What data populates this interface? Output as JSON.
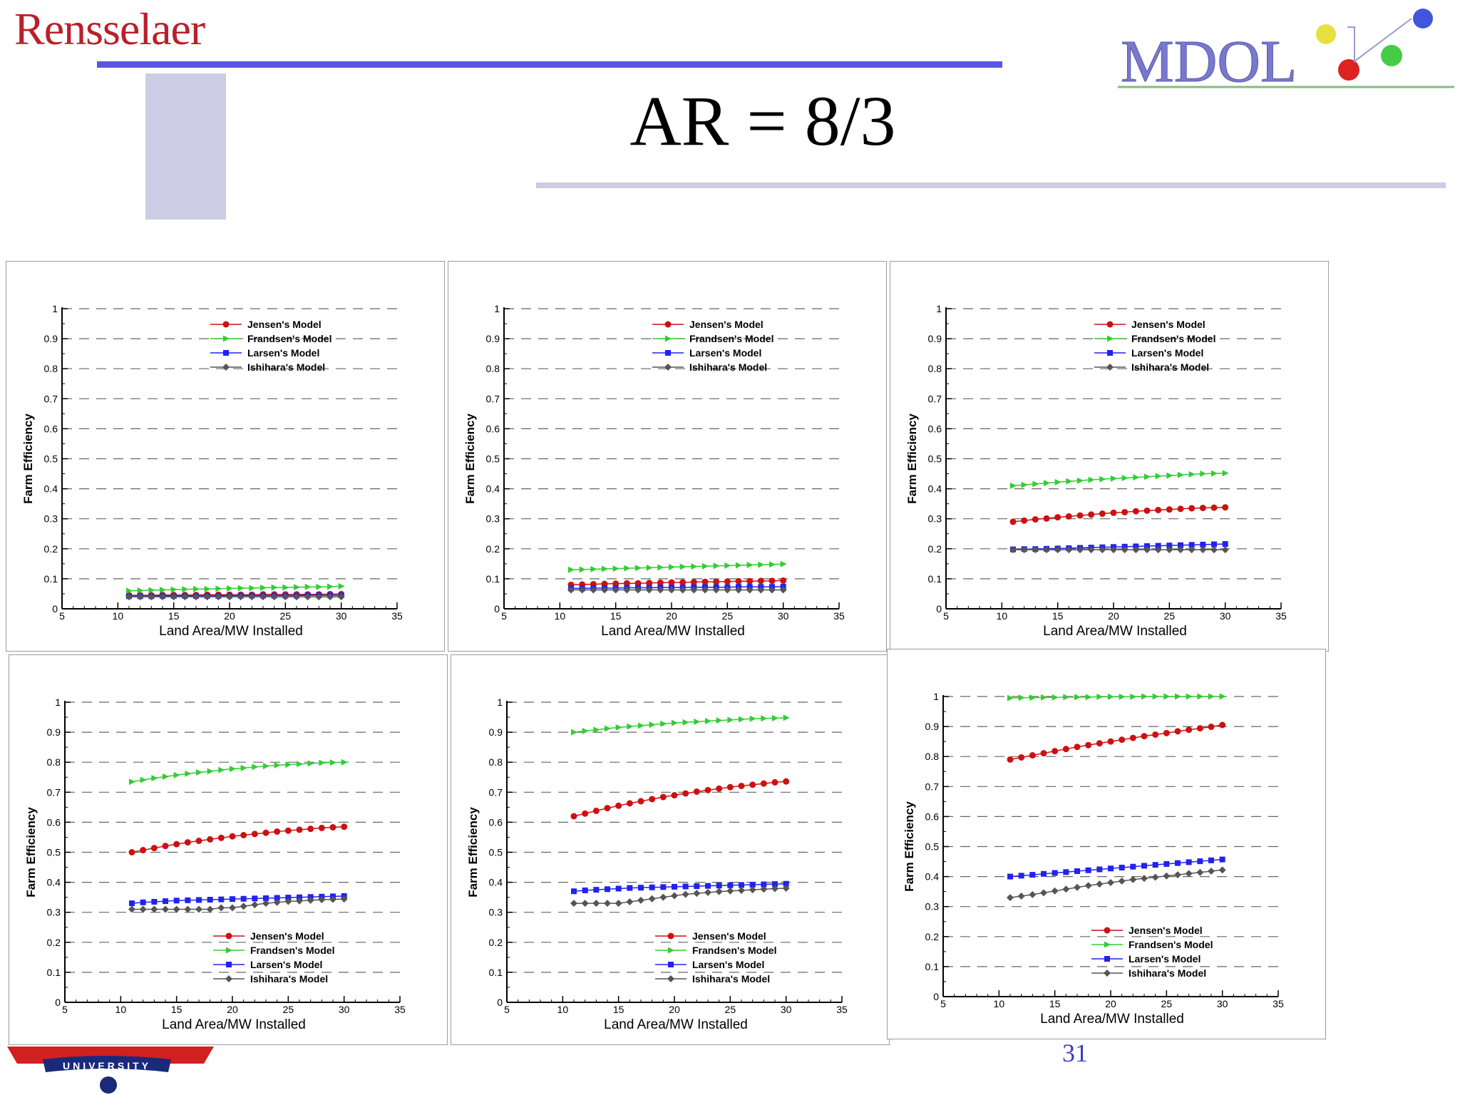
{
  "header": {
    "brand_left": "Rensselaer",
    "title": "AR = 8/3",
    "logo_right": "MDOL",
    "logo_bottom_left": "UNIVERSITY",
    "page_number": "31"
  },
  "colors": {
    "jensen": "#cc1111",
    "frandsen": "#33cc33",
    "larsen": "#2222ee",
    "ishihara": "#555555",
    "rule_top": "#5a55e6",
    "rule_light": "#cccce4",
    "brand_red": "#b8202b"
  },
  "chart_data": [
    {
      "type": "line",
      "title": "",
      "xlabel": "Land Area/MW Installed",
      "ylabel": "Farm Efficiency",
      "xlim": [
        5,
        35
      ],
      "ylim": [
        0,
        1
      ],
      "xticks": [
        5,
        10,
        15,
        20,
        25,
        30,
        35
      ],
      "yticks": [
        0,
        0.1,
        0.2,
        0.3,
        0.4,
        0.5,
        0.6,
        0.7,
        0.8,
        0.9,
        1
      ],
      "grid": true,
      "legend_position": "top-right",
      "x": [
        11,
        12,
        13,
        14,
        15,
        16,
        17,
        18,
        19,
        20,
        21,
        22,
        23,
        24,
        25,
        26,
        27,
        28,
        29,
        30
      ],
      "series": [
        {
          "name": "Jensen's Model",
          "values": [
            0.045,
            0.045,
            0.045,
            0.046,
            0.046,
            0.046,
            0.046,
            0.047,
            0.047,
            0.047,
            0.047,
            0.047,
            0.048,
            0.048,
            0.048,
            0.048,
            0.048,
            0.048,
            0.049,
            0.049
          ]
        },
        {
          "name": "Frandsen's Model",
          "values": [
            0.06,
            0.061,
            0.062,
            0.063,
            0.064,
            0.065,
            0.066,
            0.066,
            0.067,
            0.068,
            0.069,
            0.069,
            0.07,
            0.071,
            0.071,
            0.072,
            0.073,
            0.073,
            0.074,
            0.075
          ]
        },
        {
          "name": "Larsen's Model",
          "values": [
            0.042,
            0.042,
            0.042,
            0.043,
            0.043,
            0.043,
            0.043,
            0.043,
            0.043,
            0.044,
            0.044,
            0.044,
            0.044,
            0.044,
            0.044,
            0.044,
            0.045,
            0.045,
            0.045,
            0.045
          ]
        },
        {
          "name": "Ishihara's Model",
          "values": [
            0.04,
            0.04,
            0.04,
            0.04,
            0.04,
            0.04,
            0.04,
            0.04,
            0.04,
            0.04,
            0.04,
            0.04,
            0.04,
            0.04,
            0.04,
            0.04,
            0.04,
            0.04,
            0.04,
            0.04
          ]
        }
      ]
    },
    {
      "type": "line",
      "title": "",
      "xlabel": "Land Area/MW Installed",
      "ylabel": "Farm Efficiency",
      "xlim": [
        5,
        35
      ],
      "ylim": [
        0,
        1
      ],
      "xticks": [
        5,
        10,
        15,
        20,
        25,
        30,
        35
      ],
      "yticks": [
        0,
        0.1,
        0.2,
        0.3,
        0.4,
        0.5,
        0.6,
        0.7,
        0.8,
        0.9,
        1
      ],
      "grid": true,
      "legend_position": "top-right",
      "x": [
        11,
        12,
        13,
        14,
        15,
        16,
        17,
        18,
        19,
        20,
        21,
        22,
        23,
        24,
        25,
        26,
        27,
        28,
        29,
        30
      ],
      "series": [
        {
          "name": "Jensen's Model",
          "values": [
            0.08,
            0.081,
            0.082,
            0.083,
            0.084,
            0.085,
            0.085,
            0.086,
            0.087,
            0.088,
            0.088,
            0.089,
            0.09,
            0.09,
            0.091,
            0.092,
            0.092,
            0.093,
            0.093,
            0.094
          ]
        },
        {
          "name": "Frandsen's Model",
          "values": [
            0.13,
            0.131,
            0.132,
            0.133,
            0.134,
            0.135,
            0.136,
            0.137,
            0.138,
            0.139,
            0.14,
            0.141,
            0.142,
            0.143,
            0.144,
            0.145,
            0.146,
            0.147,
            0.148,
            0.149
          ]
        },
        {
          "name": "Larsen's Model",
          "values": [
            0.068,
            0.068,
            0.069,
            0.069,
            0.069,
            0.07,
            0.07,
            0.07,
            0.071,
            0.071,
            0.071,
            0.072,
            0.072,
            0.072,
            0.072,
            0.073,
            0.073,
            0.073,
            0.073,
            0.074
          ]
        },
        {
          "name": "Ishihara's Model",
          "values": [
            0.063,
            0.063,
            0.063,
            0.063,
            0.063,
            0.063,
            0.063,
            0.063,
            0.063,
            0.063,
            0.063,
            0.063,
            0.063,
            0.063,
            0.063,
            0.063,
            0.063,
            0.063,
            0.063,
            0.063
          ]
        }
      ]
    },
    {
      "type": "line",
      "title": "",
      "xlabel": "Land Area/MW Installed",
      "ylabel": "Farm Efficiency",
      "xlim": [
        5,
        35
      ],
      "ylim": [
        0,
        1
      ],
      "xticks": [
        5,
        10,
        15,
        20,
        25,
        30,
        35
      ],
      "yticks": [
        0,
        0.1,
        0.2,
        0.3,
        0.4,
        0.5,
        0.6,
        0.7,
        0.8,
        0.9,
        1
      ],
      "grid": true,
      "legend_position": "top-right",
      "x": [
        11,
        12,
        13,
        14,
        15,
        16,
        17,
        18,
        19,
        20,
        21,
        22,
        23,
        24,
        25,
        26,
        27,
        28,
        29,
        30
      ],
      "series": [
        {
          "name": "Jensen's Model",
          "values": [
            0.29,
            0.294,
            0.298,
            0.301,
            0.305,
            0.308,
            0.311,
            0.314,
            0.317,
            0.32,
            0.322,
            0.325,
            0.327,
            0.329,
            0.331,
            0.333,
            0.335,
            0.336,
            0.337,
            0.338
          ]
        },
        {
          "name": "Frandsen's Model",
          "values": [
            0.41,
            0.413,
            0.416,
            0.419,
            0.422,
            0.425,
            0.427,
            0.43,
            0.432,
            0.434,
            0.436,
            0.438,
            0.44,
            0.442,
            0.444,
            0.446,
            0.448,
            0.45,
            0.451,
            0.452
          ]
        },
        {
          "name": "Larsen's Model",
          "values": [
            0.198,
            0.199,
            0.199,
            0.2,
            0.201,
            0.202,
            0.203,
            0.204,
            0.205,
            0.206,
            0.207,
            0.208,
            0.209,
            0.21,
            0.211,
            0.212,
            0.213,
            0.214,
            0.215,
            0.216
          ]
        },
        {
          "name": "Ishihara's Model",
          "values": [
            0.197,
            0.197,
            0.197,
            0.197,
            0.197,
            0.197,
            0.197,
            0.197,
            0.197,
            0.197,
            0.197,
            0.197,
            0.197,
            0.197,
            0.197,
            0.197,
            0.197,
            0.197,
            0.197,
            0.197
          ]
        }
      ]
    },
    {
      "type": "line",
      "title": "",
      "xlabel": "Land Area/MW Installed",
      "ylabel": "Farm Efficiency",
      "xlim": [
        5,
        35
      ],
      "ylim": [
        0,
        1
      ],
      "xticks": [
        5,
        10,
        15,
        20,
        25,
        30,
        35
      ],
      "yticks": [
        0,
        0.1,
        0.2,
        0.3,
        0.4,
        0.5,
        0.6,
        0.7,
        0.8,
        0.9,
        1
      ],
      "grid": true,
      "legend_position": "bottom-right",
      "x": [
        11,
        12,
        13,
        14,
        15,
        16,
        17,
        18,
        19,
        20,
        21,
        22,
        23,
        24,
        25,
        26,
        27,
        28,
        29,
        30
      ],
      "series": [
        {
          "name": "Jensen's Model",
          "values": [
            0.5,
            0.507,
            0.514,
            0.521,
            0.527,
            0.533,
            0.538,
            0.543,
            0.548,
            0.553,
            0.557,
            0.561,
            0.565,
            0.569,
            0.572,
            0.575,
            0.578,
            0.581,
            0.583,
            0.585
          ]
        },
        {
          "name": "Frandsen's Model",
          "values": [
            0.735,
            0.741,
            0.747,
            0.752,
            0.757,
            0.762,
            0.766,
            0.77,
            0.774,
            0.778,
            0.781,
            0.784,
            0.787,
            0.79,
            0.792,
            0.794,
            0.796,
            0.798,
            0.799,
            0.8
          ]
        },
        {
          "name": "Larsen's Model",
          "values": [
            0.33,
            0.333,
            0.335,
            0.337,
            0.339,
            0.34,
            0.341,
            0.342,
            0.343,
            0.344,
            0.345,
            0.346,
            0.347,
            0.348,
            0.349,
            0.35,
            0.351,
            0.352,
            0.353,
            0.354
          ]
        },
        {
          "name": "Ishihara's Model",
          "values": [
            0.31,
            0.31,
            0.31,
            0.31,
            0.31,
            0.31,
            0.31,
            0.31,
            0.315,
            0.315,
            0.32,
            0.325,
            0.33,
            0.333,
            0.336,
            0.338,
            0.34,
            0.342,
            0.343,
            0.344
          ]
        }
      ]
    },
    {
      "type": "line",
      "title": "",
      "xlabel": "Land Area/MW Installed",
      "ylabel": "Farm Efficiency",
      "xlim": [
        5,
        35
      ],
      "ylim": [
        0,
        1
      ],
      "xticks": [
        5,
        10,
        15,
        20,
        25,
        30,
        35
      ],
      "yticks": [
        0,
        0.1,
        0.2,
        0.3,
        0.4,
        0.5,
        0.6,
        0.7,
        0.8,
        0.9,
        1
      ],
      "grid": true,
      "legend_position": "bottom-right",
      "x": [
        11,
        12,
        13,
        14,
        15,
        16,
        17,
        18,
        19,
        20,
        21,
        22,
        23,
        24,
        25,
        26,
        27,
        28,
        29,
        30
      ],
      "series": [
        {
          "name": "Jensen's Model",
          "values": [
            0.62,
            0.629,
            0.638,
            0.647,
            0.655,
            0.663,
            0.67,
            0.677,
            0.684,
            0.69,
            0.696,
            0.702,
            0.707,
            0.712,
            0.717,
            0.721,
            0.725,
            0.729,
            0.733,
            0.736
          ]
        },
        {
          "name": "Frandsen's Model",
          "values": [
            0.9,
            0.904,
            0.908,
            0.912,
            0.916,
            0.919,
            0.922,
            0.925,
            0.928,
            0.931,
            0.933,
            0.935,
            0.937,
            0.939,
            0.941,
            0.943,
            0.945,
            0.946,
            0.947,
            0.948
          ]
        },
        {
          "name": "Larsen's Model",
          "values": [
            0.37,
            0.373,
            0.375,
            0.377,
            0.379,
            0.381,
            0.382,
            0.383,
            0.384,
            0.385,
            0.386,
            0.387,
            0.388,
            0.389,
            0.39,
            0.391,
            0.392,
            0.393,
            0.394,
            0.395
          ]
        },
        {
          "name": "Ishihara's Model",
          "values": [
            0.33,
            0.33,
            0.33,
            0.33,
            0.33,
            0.335,
            0.34,
            0.345,
            0.35,
            0.355,
            0.36,
            0.363,
            0.366,
            0.369,
            0.371,
            0.373,
            0.375,
            0.377,
            0.379,
            0.38
          ]
        }
      ]
    },
    {
      "type": "line",
      "title": "",
      "xlabel": "Land Area/MW Installed",
      "ylabel": "Farm Efficiency",
      "xlim": [
        5,
        35
      ],
      "ylim": [
        0,
        1
      ],
      "xticks": [
        5,
        10,
        15,
        20,
        25,
        30,
        35
      ],
      "yticks": [
        0,
        0.1,
        0.2,
        0.3,
        0.4,
        0.5,
        0.6,
        0.7,
        0.8,
        0.9,
        1
      ],
      "grid": true,
      "legend_position": "bottom-right",
      "x": [
        11,
        12,
        13,
        14,
        15,
        16,
        17,
        18,
        19,
        20,
        21,
        22,
        23,
        24,
        25,
        26,
        27,
        28,
        29,
        30
      ],
      "series": [
        {
          "name": "Jensen's Model",
          "values": [
            0.79,
            0.797,
            0.804,
            0.811,
            0.818,
            0.825,
            0.832,
            0.838,
            0.844,
            0.85,
            0.856,
            0.862,
            0.868,
            0.873,
            0.878,
            0.884,
            0.889,
            0.894,
            0.899,
            0.905
          ]
        },
        {
          "name": "Frandsen's Model",
          "values": [
            0.995,
            0.996,
            0.996,
            0.997,
            0.997,
            0.998,
            0.998,
            0.998,
            0.999,
            0.999,
            0.999,
            0.999,
            1.0,
            1.0,
            1.0,
            1.0,
            1.0,
            1.0,
            1.0,
            1.0
          ]
        },
        {
          "name": "Larsen's Model",
          "values": [
            0.4,
            0.403,
            0.406,
            0.409,
            0.412,
            0.415,
            0.418,
            0.421,
            0.424,
            0.427,
            0.43,
            0.433,
            0.436,
            0.439,
            0.442,
            0.445,
            0.448,
            0.451,
            0.454,
            0.457
          ]
        },
        {
          "name": "Ishihara's Model",
          "values": [
            0.33,
            0.335,
            0.34,
            0.346,
            0.352,
            0.358,
            0.364,
            0.37,
            0.375,
            0.38,
            0.385,
            0.39,
            0.394,
            0.398,
            0.402,
            0.406,
            0.41,
            0.414,
            0.418,
            0.422
          ]
        }
      ]
    }
  ]
}
